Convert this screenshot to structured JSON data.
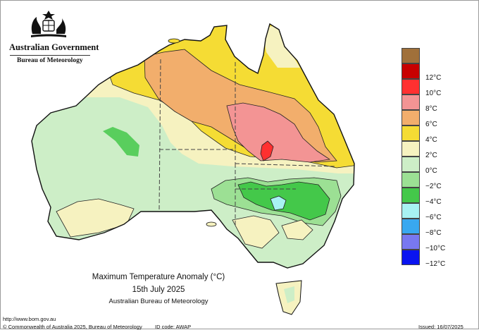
{
  "header": {
    "government": "Australian Government",
    "agency": "Bureau of Meteorology"
  },
  "map": {
    "title": "Maximum Temperature Anomaly (°C)",
    "date": "15th July 2025",
    "source": "Australian Bureau of Meteorology"
  },
  "legend": {
    "items": [
      {
        "label": "",
        "color": "#a0703a"
      },
      {
        "label": "12°C",
        "color": "#c80000"
      },
      {
        "label": "10°C",
        "color": "#ff3030"
      },
      {
        "label": "8°C",
        "color": "#f39494"
      },
      {
        "label": "6°C",
        "color": "#f2ae6c"
      },
      {
        "label": "4°C",
        "color": "#f5dc34"
      },
      {
        "label": "2°C",
        "color": "#f6f2c0"
      },
      {
        "label": "0°C",
        "color": "#cdeec7"
      },
      {
        "label": "−2°C",
        "color": "#9ce094"
      },
      {
        "label": "−4°C",
        "color": "#44c84a"
      },
      {
        "label": "−6°C",
        "color": "#a8f2f2"
      },
      {
        "label": "−8°C",
        "color": "#39a8f0"
      },
      {
        "label": "−10°C",
        "color": "#7878f0"
      },
      {
        "label": "−12°C",
        "color": "#0a14f0"
      }
    ]
  },
  "footer": {
    "url": "http://www.bom.gov.au",
    "copyright": "© Commonwealth of Australia 2025, Bureau of Meteorology",
    "id_code": "ID code: AWAP",
    "issued": "Issued: 16/07/2025"
  }
}
